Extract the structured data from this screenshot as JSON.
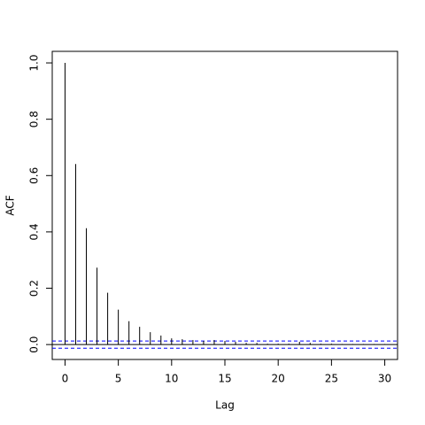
{
  "chart_data": {
    "type": "acf",
    "xlabel": "Lag",
    "ylabel": "ACF",
    "x": [
      0,
      1,
      2,
      3,
      4,
      5,
      6,
      7,
      8,
      9,
      10,
      11,
      12,
      13,
      14,
      15,
      16,
      17,
      18,
      19,
      20,
      21,
      22,
      23,
      24,
      25,
      26,
      27,
      28,
      29,
      30
    ],
    "values": [
      1.0,
      0.641,
      0.413,
      0.273,
      0.184,
      0.124,
      0.083,
      0.063,
      0.044,
      0.032,
      0.022,
      0.019,
      0.016,
      0.013,
      0.016,
      0.013,
      0.01,
      0.006,
      0.006,
      0.003,
      0.003,
      0.003,
      0.01,
      0.006,
      0.003,
      0.003,
      0.002,
      0.002,
      0.002,
      0.002,
      0.002
    ],
    "color": "#000000",
    "conf_limits": [
      -0.0128,
      0.0128
    ],
    "conf_color": "#0000ff",
    "xlim": [
      -1.2,
      31.2
    ],
    "ylim": [
      -0.053,
      1.041
    ],
    "xticks": [
      0,
      5,
      10,
      15,
      20,
      25,
      30
    ],
    "yticks": [
      {
        "value": 0,
        "label": "0.0"
      },
      0.2,
      0.4,
      0.6,
      0.8,
      {
        "value": 1,
        "label": "1.0"
      }
    ]
  }
}
